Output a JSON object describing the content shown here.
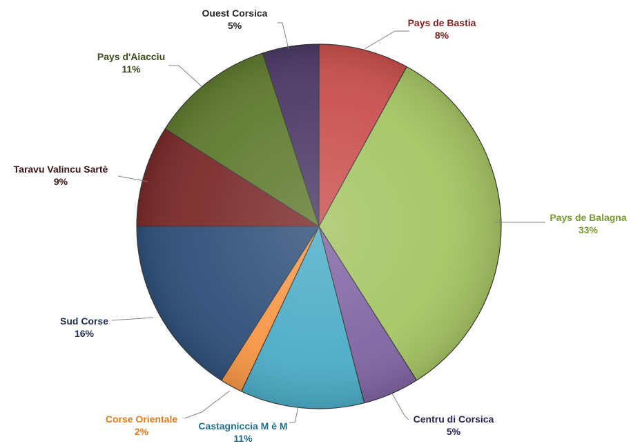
{
  "chart_data": {
    "type": "pie",
    "title": "",
    "slices": [
      {
        "name": "Pays de Bastia",
        "value": 8,
        "label": "8%",
        "color": "#c9504e",
        "label_color": "#7a1f1f"
      },
      {
        "name": "Pays de Balagna",
        "value": 33,
        "label": "33%",
        "color": "#a5c463",
        "label_color": "#7a9a2e"
      },
      {
        "name": "Centru di Corsica",
        "value": 5,
        "label": "5%",
        "color": "#8064a2",
        "label_color": "#2b2250"
      },
      {
        "name": "Castagniccia M è M",
        "value": 11,
        "label": "11%",
        "color": "#4bacc6",
        "label_color": "#1f6f8f"
      },
      {
        "name": "Corse Orientale",
        "value": 2,
        "label": "2%",
        "color": "#f79646",
        "label_color": "#e07b1a"
      },
      {
        "name": "Sud Corse",
        "value": 16,
        "label": "16%",
        "color": "#2f4f79",
        "label_color": "#1f2f50"
      },
      {
        "name": "Taravu Valincu Sartè",
        "value": 9,
        "label": "9%",
        "color": "#7a2a2a",
        "label_color": "#3a1414"
      },
      {
        "name": "Pays d'Aiacciu",
        "value": 11,
        "label": "11%",
        "color": "#5f7a2f",
        "label_color": "#3a4a1a"
      },
      {
        "name": "Ouest Corsica",
        "value": 5,
        "label": "5%",
        "color": "#4c3a66",
        "label_color": "#262626"
      }
    ],
    "legend": "none"
  }
}
